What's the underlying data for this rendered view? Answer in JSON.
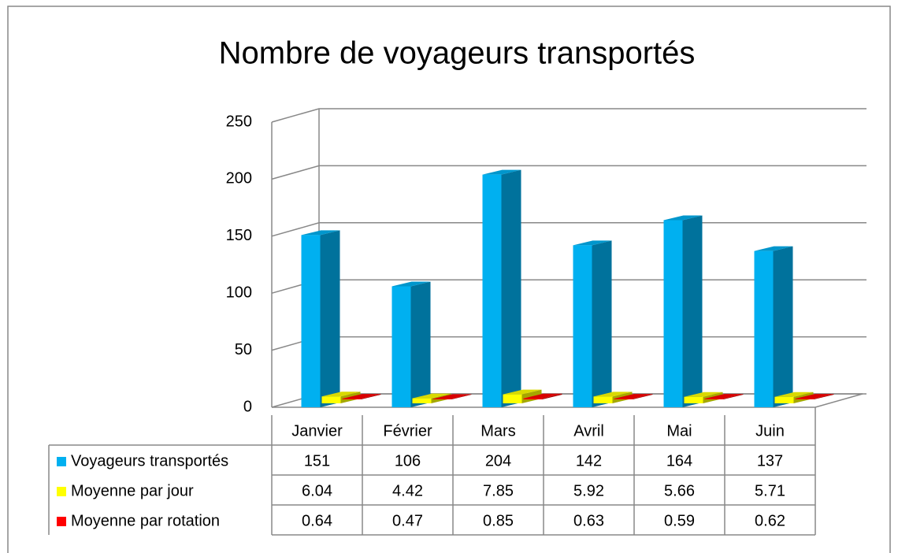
{
  "chart_data": {
    "type": "bar3d",
    "title": "Nombre de voyageurs transportés",
    "categories": [
      "Janvier",
      "Février",
      "Mars",
      "Avril",
      "Mai",
      "Juin"
    ],
    "series": [
      {
        "name": "Voyageurs transportés",
        "color": "#00B0F0",
        "values": [
          151,
          106,
          204,
          142,
          164,
          137
        ]
      },
      {
        "name": "Moyenne par jour",
        "color": "#FFFF00",
        "values": [
          6.04,
          4.42,
          7.85,
          5.92,
          5.66,
          5.71
        ]
      },
      {
        "name": "Moyenne par rotation",
        "color": "#FF0000",
        "values": [
          0.64,
          0.47,
          0.85,
          0.63,
          0.59,
          0.62
        ]
      }
    ],
    "ylim": [
      0,
      250
    ],
    "yticks": [
      0,
      50,
      100,
      150,
      200,
      250
    ],
    "grid": true,
    "data_table": true
  }
}
